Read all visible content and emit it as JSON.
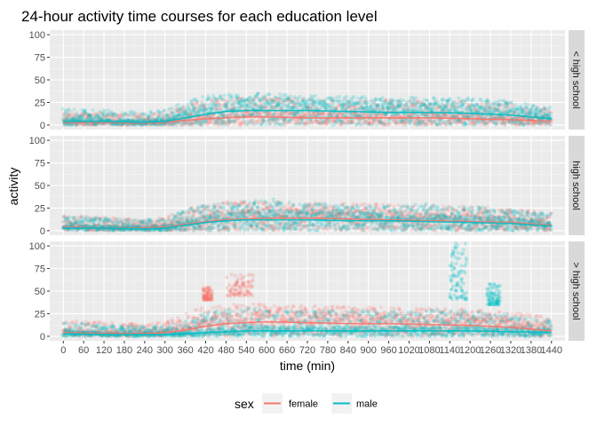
{
  "chart_data": {
    "type": "scatter",
    "title": "24-hour activity time courses for each education level",
    "xlabel": "time (min)",
    "ylabel": "activity",
    "xlim": [
      -40,
      1480
    ],
    "ylim": [
      -5,
      105
    ],
    "x_ticks": [
      0,
      60,
      120,
      180,
      240,
      300,
      360,
      420,
      480,
      540,
      600,
      660,
      720,
      780,
      840,
      900,
      960,
      1020,
      1080,
      1140,
      1200,
      1260,
      1320,
      1380,
      1440
    ],
    "y_ticks": [
      0,
      25,
      50,
      75,
      100
    ],
    "grid": true,
    "legend_title": "sex",
    "legend_position": "bottom",
    "series_colors": {
      "female": "#F8766D",
      "male": "#00BFC4"
    },
    "panels": [
      {
        "strip": "< high school",
        "series": [
          {
            "name": "female",
            "x": [
              0,
              120,
              240,
              300,
              360,
              420,
              480,
              540,
              600,
              720,
              840,
              960,
              1080,
              1200,
              1320,
              1440
            ],
            "mean": [
              3,
              3,
              2,
              3,
              5,
              7,
              8,
              9,
              9,
              8,
              8,
              8,
              8,
              7,
              6,
              4
            ],
            "upper": [
              15,
              14,
              12,
              15,
              23,
              28,
              30,
              30,
              31,
              29,
              28,
              28,
              28,
              27,
              24,
              18
            ]
          },
          {
            "name": "male",
            "x": [
              0,
              120,
              240,
              300,
              360,
              420,
              480,
              540,
              600,
              720,
              840,
              960,
              1080,
              1200,
              1320,
              1440
            ],
            "mean": [
              4,
              4,
              3,
              4,
              8,
              12,
              15,
              16,
              16,
              16,
              15,
              14,
              14,
              13,
              11,
              7
            ],
            "upper": [
              18,
              17,
              14,
              17,
              26,
              32,
              34,
              35,
              35,
              33,
              32,
              31,
              31,
              30,
              27,
              20
            ]
          }
        ]
      },
      {
        "strip": "high school",
        "series": [
          {
            "name": "female",
            "x": [
              0,
              120,
              240,
              300,
              360,
              420,
              480,
              540,
              600,
              720,
              840,
              960,
              1080,
              1200,
              1320,
              1440
            ],
            "mean": [
              4,
              3,
              3,
              4,
              7,
              10,
              12,
              13,
              14,
              14,
              13,
              12,
              11,
              10,
              9,
              6
            ],
            "upper": [
              17,
              15,
              12,
              15,
              24,
              30,
              32,
              33,
              33,
              31,
              30,
              29,
              28,
              27,
              25,
              20
            ]
          },
          {
            "name": "male",
            "x": [
              0,
              120,
              240,
              300,
              360,
              420,
              480,
              540,
              600,
              720,
              840,
              960,
              1080,
              1200,
              1320,
              1440
            ],
            "mean": [
              3,
              3,
              2,
              3,
              6,
              9,
              11,
              12,
              12,
              12,
              11,
              11,
              10,
              9,
              8,
              5
            ],
            "upper": [
              16,
              14,
              12,
              14,
              23,
              29,
              31,
              34,
              36,
              31,
              29,
              28,
              30,
              27,
              24,
              19
            ]
          }
        ]
      },
      {
        "strip": "> high school",
        "series": [
          {
            "name": "female",
            "x": [
              0,
              120,
              240,
              300,
              360,
              420,
              480,
              540,
              600,
              720,
              840,
              960,
              1080,
              1200,
              1320,
              1440
            ],
            "mean": [
              4,
              3,
              3,
              4,
              7,
              11,
              14,
              15,
              16,
              15,
              14,
              14,
              13,
              12,
              10,
              6
            ],
            "upper": [
              18,
              16,
              13,
              16,
              26,
              33,
              35,
              36,
              36,
              34,
              33,
              32,
              31,
              30,
              27,
              21
            ]
          },
          {
            "name": "male",
            "x": [
              0,
              120,
              240,
              300,
              360,
              420,
              480,
              540,
              600,
              720,
              840,
              960,
              1080,
              1200,
              1320,
              1440
            ],
            "mean": [
              3,
              2,
              2,
              2,
              3,
              4,
              5,
              6,
              6,
              6,
              6,
              6,
              6,
              6,
              5,
              4
            ],
            "upper": [
              15,
              13,
              11,
              12,
              20,
              27,
              30,
              31,
              31,
              29,
              28,
              28,
              29,
              28,
              24,
              18
            ]
          }
        ],
        "outlier_clusters": [
          {
            "series": "female",
            "x_range": [
              410,
              440
            ],
            "y_range": [
              40,
              55
            ]
          },
          {
            "series": "female",
            "x_range": [
              480,
              560
            ],
            "y_range": [
              45,
              70
            ]
          },
          {
            "series": "male",
            "x_range": [
              1140,
              1190
            ],
            "y_range": [
              40,
              103
            ]
          },
          {
            "series": "male",
            "x_range": [
              1250,
              1290
            ],
            "y_range": [
              35,
              58
            ]
          }
        ]
      }
    ]
  }
}
